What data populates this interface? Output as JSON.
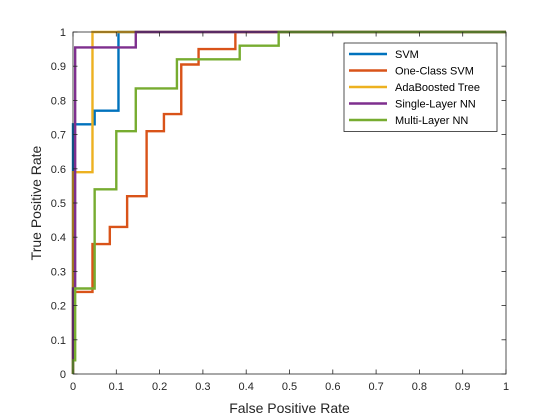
{
  "chart_data": {
    "type": "line",
    "xlabel": "False Positive Rate",
    "ylabel": "True Positive Rate",
    "xlim": [
      0,
      1
    ],
    "ylim": [
      0,
      1
    ],
    "x_ticks": [
      "0",
      "0.1",
      "0.2",
      "0.3",
      "0.4",
      "0.5",
      "0.6",
      "0.7",
      "0.8",
      "0.9",
      "1"
    ],
    "y_ticks": [
      "0",
      "0.1",
      "0.2",
      "0.3",
      "0.4",
      "0.5",
      "0.6",
      "0.7",
      "0.8",
      "0.9",
      "1"
    ],
    "grid": false,
    "legend_position": "top-right",
    "series": [
      {
        "name": "SVM",
        "color": "#0072BD",
        "x": [
          0,
          0,
          0.05,
          0.05,
          0.105,
          0.105,
          1
        ],
        "y": [
          0,
          0.73,
          0.73,
          0.77,
          0.77,
          1,
          1
        ]
      },
      {
        "name": "One-Class SVM",
        "color": "#D95319",
        "x": [
          0,
          0,
          0.045,
          0.045,
          0.085,
          0.085,
          0.125,
          0.125,
          0.17,
          0.17,
          0.21,
          0.21,
          0.25,
          0.25,
          0.29,
          0.29,
          0.375,
          0.375,
          1
        ],
        "y": [
          0,
          0.24,
          0.24,
          0.38,
          0.38,
          0.43,
          0.43,
          0.52,
          0.52,
          0.71,
          0.71,
          0.76,
          0.76,
          0.905,
          0.905,
          0.95,
          0.95,
          1,
          1
        ]
      },
      {
        "name": "AdaBoosted Tree",
        "color": "#EDB120",
        "x": [
          0,
          0,
          0.045,
          0.045,
          1
        ],
        "y": [
          0,
          0.59,
          0.59,
          1,
          1
        ]
      },
      {
        "name": "Single-Layer NN",
        "color": "#7E2F8E",
        "x": [
          0,
          0,
          0.005,
          0.005,
          0.145,
          0.145,
          1
        ],
        "y": [
          0,
          0.25,
          0.25,
          0.955,
          0.955,
          1,
          1
        ]
      },
      {
        "name": "Multi-Layer NN",
        "color": "#77AC30",
        "x": [
          0,
          0,
          0.005,
          0.005,
          0.05,
          0.05,
          0.1,
          0.1,
          0.145,
          0.145,
          0.24,
          0.24,
          0.385,
          0.385,
          0.475,
          0.475,
          1
        ],
        "y": [
          0,
          0.04,
          0.04,
          0.25,
          0.25,
          0.54,
          0.54,
          0.71,
          0.71,
          0.835,
          0.835,
          0.92,
          0.92,
          0.96,
          0.96,
          1,
          1
        ]
      }
    ]
  }
}
